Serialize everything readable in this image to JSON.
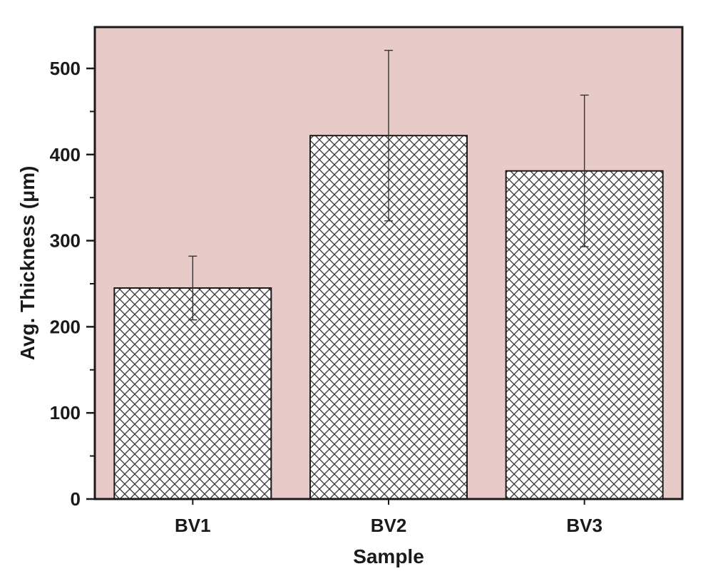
{
  "chart_data": {
    "type": "bar",
    "categories": [
      "BV1",
      "BV2",
      "BV3"
    ],
    "values": [
      245,
      422,
      381
    ],
    "error_bars": [
      37,
      99,
      88
    ],
    "xlabel": "Sample",
    "ylabel": "Avg. Thickness (μm)",
    "ylim": [
      0,
      548
    ],
    "yticks": [
      0,
      100,
      200,
      300,
      400,
      500
    ],
    "grid": false,
    "legend": "none",
    "bar_pattern": "crosshatch",
    "colors": {
      "plot_background": "#e8cbc8",
      "bar_fill": "#ffffff",
      "bar_hatch": "#333333",
      "axis": "#1a1a1a"
    }
  }
}
